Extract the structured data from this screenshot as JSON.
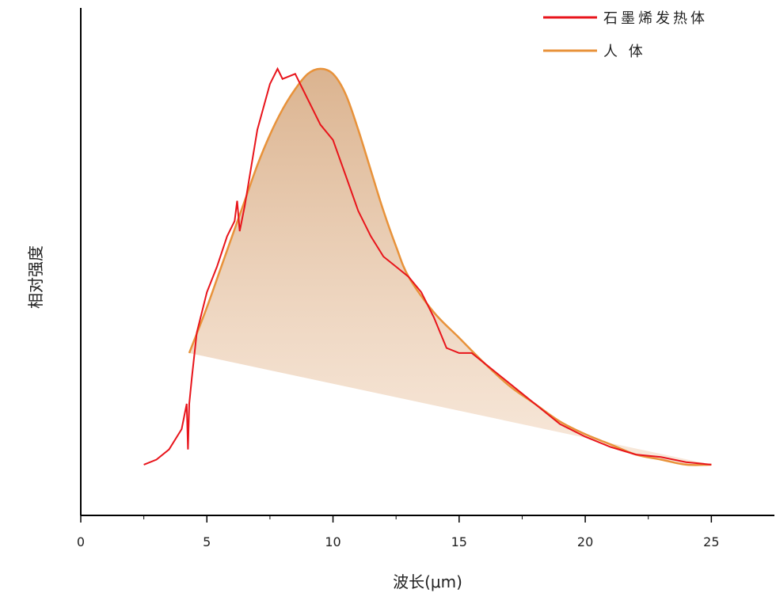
{
  "chart_data": {
    "type": "line",
    "xlabel": "波长(μm)",
    "ylabel": "相对强度",
    "xlim": [
      0,
      27.5
    ],
    "ylim": [
      0,
      1.0
    ],
    "x_ticks": [
      0,
      5,
      10,
      15,
      20,
      25
    ],
    "x_tick_labels": [
      "0",
      "5",
      "10",
      "15",
      "20",
      "25"
    ],
    "y_ticks_shown": false,
    "grid": false,
    "legend_position": "top-right",
    "colors": {
      "graphene": "#e8141b",
      "human": "#e8923a",
      "human_fill": "#d9a77a"
    },
    "series": [
      {
        "name": "石墨烯发热体",
        "x": [
          2.5,
          3.0,
          3.5,
          4.0,
          4.2,
          4.25,
          4.3,
          4.4,
          4.6,
          5.0,
          5.4,
          5.8,
          6.1,
          6.2,
          6.3,
          6.5,
          7.0,
          7.5,
          7.8,
          8.0,
          8.5,
          9.0,
          9.5,
          10.0,
          10.5,
          11.0,
          11.5,
          12.0,
          12.5,
          13.0,
          13.5,
          14.0,
          14.5,
          15.0,
          15.5,
          16.0,
          17.0,
          18.0,
          19.0,
          20.0,
          21.0,
          22.0,
          23.0,
          24.0,
          25.0
        ],
        "y": [
          0.1,
          0.11,
          0.13,
          0.17,
          0.22,
          0.13,
          0.22,
          0.27,
          0.36,
          0.44,
          0.49,
          0.55,
          0.58,
          0.62,
          0.56,
          0.61,
          0.76,
          0.85,
          0.88,
          0.86,
          0.87,
          0.82,
          0.77,
          0.74,
          0.67,
          0.6,
          0.55,
          0.51,
          0.49,
          0.47,
          0.44,
          0.39,
          0.33,
          0.32,
          0.32,
          0.3,
          0.26,
          0.22,
          0.18,
          0.155,
          0.135,
          0.12,
          0.115,
          0.105,
          0.1
        ]
      },
      {
        "name": "人 体",
        "x": [
          4.3,
          5.0,
          5.5,
          6.0,
          6.5,
          7.0,
          7.5,
          8.0,
          8.5,
          9.0,
          9.5,
          10.0,
          10.5,
          11.0,
          11.5,
          12.0,
          12.5,
          13.0,
          14.0,
          15.0,
          16.0,
          17.0,
          18.0,
          19.0,
          20.0,
          21.0,
          22.0,
          23.0,
          24.0,
          25.0
        ],
        "y": [
          0.32,
          0.41,
          0.48,
          0.55,
          0.62,
          0.69,
          0.75,
          0.8,
          0.84,
          0.87,
          0.88,
          0.87,
          0.83,
          0.76,
          0.68,
          0.6,
          0.53,
          0.47,
          0.4,
          0.35,
          0.3,
          0.255,
          0.22,
          0.185,
          0.16,
          0.14,
          0.12,
          0.11,
          0.1,
          0.1
        ]
      }
    ]
  }
}
